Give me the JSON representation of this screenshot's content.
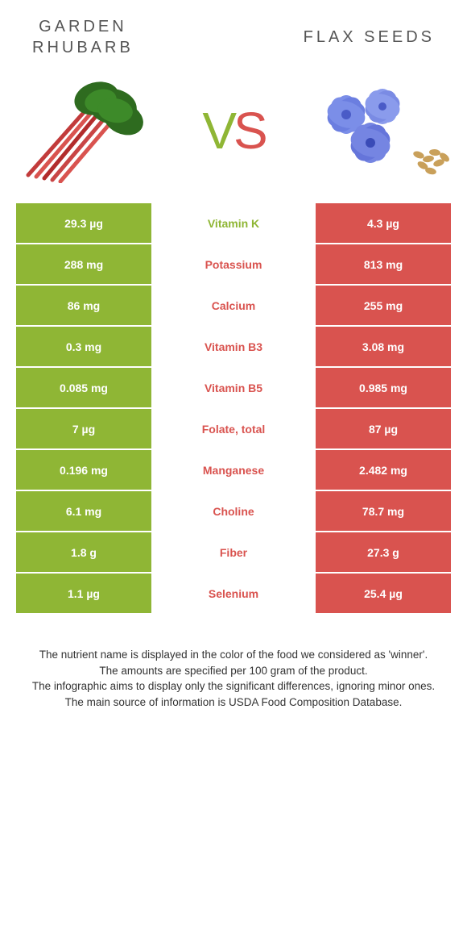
{
  "header": {
    "left_line1": "GARDEN",
    "left_line2": "RHUBARB",
    "right": "FLAX SEEDS"
  },
  "vs": {
    "v": "V",
    "s": "S"
  },
  "colors": {
    "green": "#8fb635",
    "red": "#d9534f",
    "green_text": "#8fb635",
    "red_text": "#d9534f"
  },
  "rows": [
    {
      "left": "29.3 µg",
      "mid": "Vitamin K",
      "right": "4.3 µg",
      "winner": "green"
    },
    {
      "left": "288 mg",
      "mid": "Potassium",
      "right": "813 mg",
      "winner": "red"
    },
    {
      "left": "86 mg",
      "mid": "Calcium",
      "right": "255 mg",
      "winner": "red"
    },
    {
      "left": "0.3 mg",
      "mid": "Vitamin B3",
      "right": "3.08 mg",
      "winner": "red"
    },
    {
      "left": "0.085 mg",
      "mid": "Vitamin B5",
      "right": "0.985 mg",
      "winner": "red"
    },
    {
      "left": "7 µg",
      "mid": "Folate, total",
      "right": "87 µg",
      "winner": "red"
    },
    {
      "left": "0.196 mg",
      "mid": "Manganese",
      "right": "2.482 mg",
      "winner": "red"
    },
    {
      "left": "6.1 mg",
      "mid": "Choline",
      "right": "78.7 mg",
      "winner": "red"
    },
    {
      "left": "1.8 g",
      "mid": "Fiber",
      "right": "27.3 g",
      "winner": "red"
    },
    {
      "left": "1.1 µg",
      "mid": "Selenium",
      "right": "25.4 µg",
      "winner": "red"
    }
  ],
  "footer": {
    "line1": "The nutrient name is displayed in the color of the food we considered as 'winner'.",
    "line2": "The amounts are specified per 100 gram of the product.",
    "line3": "The infographic aims to display only the significant differences, ignoring minor ones.",
    "line4": "The main source of information is USDA Food Composition Database."
  }
}
